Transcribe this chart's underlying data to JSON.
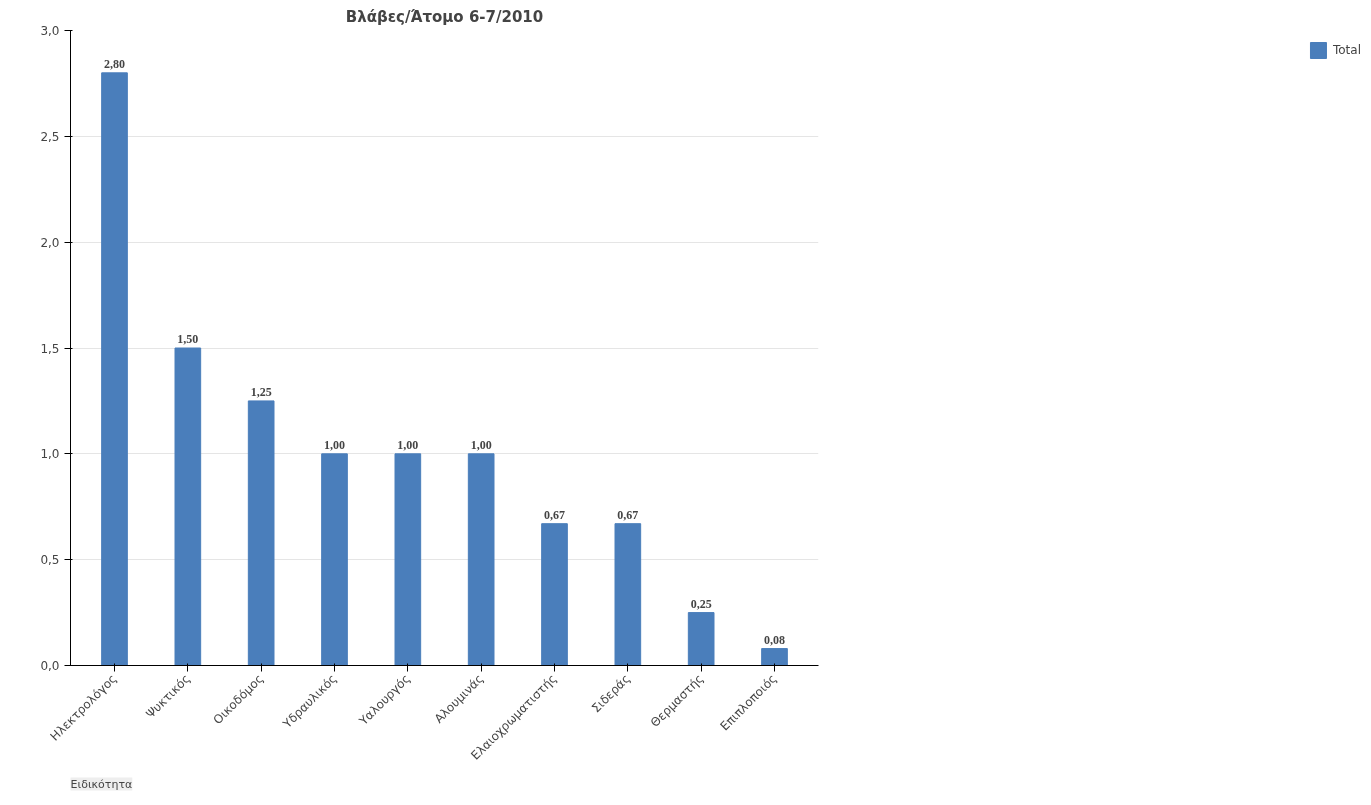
{
  "chart_data": {
    "type": "bar",
    "title": "Βλάβες/Άτομο 6-7/2010",
    "categories": [
      "Ηλεκτρολόγος",
      "Ψυκτικός",
      "Οικοδόμος",
      "Υδραυλικός",
      "Υαλουργός",
      "Αλουμινάς",
      "Ελαιοχρωματιστής",
      "Σιδεράς",
      "Θερμαστής",
      "Επιπλοποιός"
    ],
    "series": [
      {
        "name": "Total",
        "color": "#4a7ebb",
        "values": [
          2.8,
          1.5,
          1.25,
          1.0,
          1.0,
          1.0,
          0.67,
          0.67,
          0.25,
          0.08
        ],
        "value_labels": [
          "2,80",
          "1,50",
          "1,25",
          "1,00",
          "1,00",
          "1,00",
          "0,67",
          "0,67",
          "0,25",
          "0,08"
        ]
      }
    ],
    "ylim": [
      0,
      3
    ],
    "yticks": [
      {
        "value": 0,
        "label": "0,0"
      },
      {
        "value": 0.5,
        "label": "0,5"
      },
      {
        "value": 1,
        "label": "1,0"
      },
      {
        "value": 1.5,
        "label": "1,5"
      },
      {
        "value": 2,
        "label": "2,0"
      },
      {
        "value": 2.5,
        "label": "2,5"
      },
      {
        "value": 3,
        "label": "3,0"
      }
    ],
    "grid": "y",
    "legend": "right",
    "annotations": [
      "Ειδικότητα"
    ]
  }
}
